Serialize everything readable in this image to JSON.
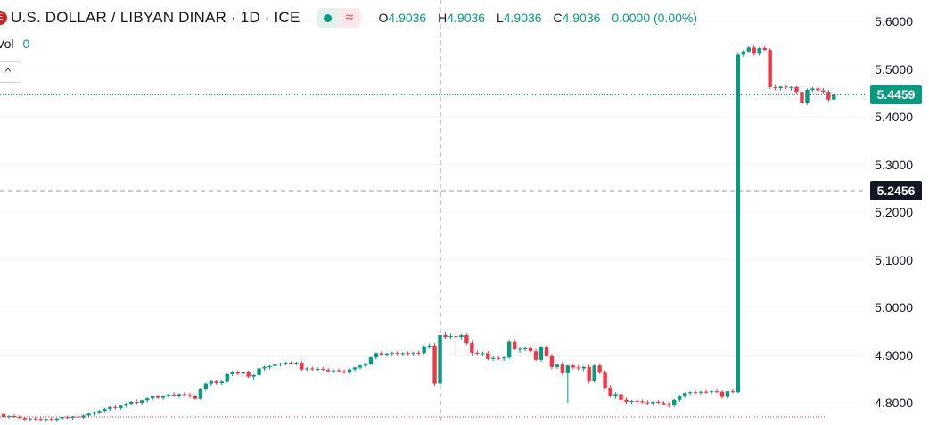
{
  "header": {
    "logo_text": "E",
    "title": "U.S. DOLLAR / LIBYAN DINAR · 1D · ICE",
    "wave_glyph": "≈",
    "ohlc": [
      {
        "k": "O",
        "v": "4.9036"
      },
      {
        "k": "H",
        "v": "4.9036"
      },
      {
        "k": "L",
        "v": "4.9036"
      },
      {
        "k": "C",
        "v": "4.9036"
      },
      {
        "k": "",
        "v": "0.0000 (0.00%)"
      }
    ],
    "vol_label": "Vol",
    "vol_value": "0",
    "collapse_glyph": "^"
  },
  "axis": {
    "tick_labels": [
      "5.6000",
      "5.5000",
      "5.4000",
      "5.3000",
      "5.2000",
      "5.1000",
      "5.0000",
      "4.9000",
      "4.8000"
    ],
    "last_price_label": "5.4459",
    "crosshair_label": "5.2456"
  },
  "colors": {
    "up": "#089981",
    "down": "#f23645",
    "crosshair_tag": "#131722",
    "grid": "#f0f3fa"
  },
  "chart_data": {
    "type": "candlestick",
    "title": "U.S. DOLLAR / LIBYAN DINAR · 1D · ICE",
    "ylim": [
      4.78,
      5.62
    ],
    "y_ticks": [
      5.6,
      5.5,
      5.4,
      5.3,
      5.2,
      5.1,
      5.0,
      4.9,
      4.8
    ],
    "last_price": 5.4459,
    "crosshair_price": 5.2456,
    "last_ohlc": {
      "open": 4.9036,
      "high": 4.9036,
      "low": 4.9036,
      "close": 4.9036,
      "change": 0.0,
      "change_pct": 0.0
    },
    "volume": 0,
    "candles": [
      [
        4.776,
        4.779,
        4.77,
        4.77
      ],
      [
        4.77,
        4.774,
        4.766,
        4.772
      ],
      [
        4.772,
        4.776,
        4.768,
        4.77
      ],
      [
        4.77,
        4.773,
        4.766,
        4.768
      ],
      [
        4.768,
        4.77,
        4.762,
        4.765
      ],
      [
        4.765,
        4.768,
        4.76,
        4.767
      ],
      [
        4.767,
        4.77,
        4.763,
        4.766
      ],
      [
        4.766,
        4.77,
        4.762,
        4.764
      ],
      [
        4.764,
        4.767,
        4.76,
        4.766
      ],
      [
        4.766,
        4.769,
        4.763,
        4.764
      ],
      [
        4.764,
        4.768,
        4.76,
        4.767
      ],
      [
        4.767,
        4.772,
        4.764,
        4.77
      ],
      [
        4.77,
        4.773,
        4.766,
        4.768
      ],
      [
        4.768,
        4.772,
        4.764,
        4.771
      ],
      [
        4.771,
        4.774,
        4.767,
        4.769
      ],
      [
        4.769,
        4.775,
        4.766,
        4.773
      ],
      [
        4.773,
        4.779,
        4.77,
        4.777
      ],
      [
        4.777,
        4.782,
        4.773,
        4.78
      ],
      [
        4.78,
        4.785,
        4.776,
        4.783
      ],
      [
        4.783,
        4.789,
        4.78,
        4.787
      ],
      [
        4.787,
        4.793,
        4.783,
        4.791
      ],
      [
        4.791,
        4.795,
        4.786,
        4.789
      ],
      [
        4.789,
        4.796,
        4.785,
        4.794
      ],
      [
        4.794,
        4.8,
        4.79,
        4.798
      ],
      [
        4.798,
        4.804,
        4.794,
        4.802
      ],
      [
        4.802,
        4.807,
        4.797,
        4.8
      ],
      [
        4.8,
        4.806,
        4.796,
        4.805
      ],
      [
        4.805,
        4.811,
        4.801,
        4.809
      ],
      [
        4.809,
        4.815,
        4.805,
        4.813
      ],
      [
        4.813,
        4.817,
        4.808,
        4.81
      ],
      [
        4.81,
        4.816,
        4.806,
        4.814
      ],
      [
        4.814,
        4.819,
        4.81,
        4.817
      ],
      [
        4.817,
        4.822,
        4.812,
        4.815
      ],
      [
        4.815,
        4.82,
        4.81,
        4.818
      ],
      [
        4.818,
        4.823,
        4.813,
        4.816
      ],
      [
        4.816,
        4.821,
        4.81,
        4.813
      ],
      [
        4.813,
        4.817,
        4.806,
        4.808
      ],
      [
        4.808,
        4.83,
        4.805,
        4.828
      ],
      [
        4.828,
        4.842,
        4.825,
        4.84
      ],
      [
        4.84,
        4.848,
        4.835,
        4.845
      ],
      [
        4.845,
        4.849,
        4.838,
        4.841
      ],
      [
        4.841,
        4.847,
        4.837,
        4.844
      ],
      [
        4.844,
        4.862,
        4.842,
        4.86
      ],
      [
        4.86,
        4.867,
        4.856,
        4.864
      ],
      [
        4.864,
        4.868,
        4.858,
        4.861
      ],
      [
        4.861,
        4.866,
        4.857,
        4.864
      ],
      [
        4.864,
        4.868,
        4.852,
        4.855
      ],
      [
        4.855,
        4.86,
        4.848,
        4.858
      ],
      [
        4.858,
        4.874,
        4.855,
        4.872
      ],
      [
        4.872,
        4.878,
        4.867,
        4.875
      ],
      [
        4.875,
        4.879,
        4.87,
        4.877
      ],
      [
        4.877,
        4.882,
        4.873,
        4.88
      ],
      [
        4.88,
        4.884,
        4.876,
        4.882
      ],
      [
        4.882,
        4.886,
        4.878,
        4.884
      ],
      [
        4.884,
        4.887,
        4.88,
        4.882
      ],
      [
        4.882,
        4.886,
        4.878,
        4.884
      ],
      [
        4.884,
        4.887,
        4.867,
        4.87
      ],
      [
        4.87,
        4.875,
        4.866,
        4.872
      ],
      [
        4.872,
        4.876,
        4.867,
        4.87
      ],
      [
        4.87,
        4.874,
        4.866,
        4.871
      ],
      [
        4.871,
        4.875,
        4.867,
        4.869
      ],
      [
        4.869,
        4.873,
        4.864,
        4.866
      ],
      [
        4.866,
        4.87,
        4.862,
        4.868
      ],
      [
        4.868,
        4.872,
        4.864,
        4.866
      ],
      [
        4.866,
        4.87,
        4.861,
        4.863
      ],
      [
        4.863,
        4.872,
        4.86,
        4.87
      ],
      [
        4.87,
        4.876,
        4.866,
        4.874
      ],
      [
        4.874,
        4.88,
        4.87,
        4.878
      ],
      [
        4.878,
        4.884,
        4.874,
        4.882
      ],
      [
        4.882,
        4.897,
        4.879,
        4.895
      ],
      [
        4.895,
        4.906,
        4.891,
        4.904
      ],
      [
        4.904,
        4.908,
        4.898,
        4.901
      ],
      [
        4.901,
        4.905,
        4.896,
        4.903
      ],
      [
        4.903,
        4.907,
        4.898,
        4.905
      ],
      [
        4.905,
        4.908,
        4.9,
        4.903
      ],
      [
        4.903,
        4.906,
        4.899,
        4.904
      ],
      [
        4.904,
        4.908,
        4.9,
        4.903
      ],
      [
        4.903,
        4.907,
        4.899,
        4.905
      ],
      [
        4.905,
        4.909,
        4.9,
        4.904
      ],
      [
        4.904,
        4.92,
        4.902,
        4.918
      ],
      [
        4.918,
        4.924,
        4.913,
        4.92
      ],
      [
        4.92,
        4.925,
        4.835,
        4.84
      ],
      [
        4.84,
        4.945,
        4.835,
        4.942
      ],
      [
        4.942,
        4.948,
        4.935,
        4.938
      ],
      [
        4.938,
        4.945,
        4.933,
        4.94
      ],
      [
        4.94,
        4.944,
        4.9,
        4.938
      ],
      [
        4.938,
        4.944,
        4.932,
        4.942
      ],
      [
        4.942,
        4.946,
        4.922,
        4.925
      ],
      [
        4.925,
        4.93,
        4.9,
        4.905
      ],
      [
        4.905,
        4.91,
        4.9,
        4.903
      ],
      [
        4.903,
        4.907,
        4.898,
        4.904
      ],
      [
        4.904,
        4.908,
        4.89,
        4.892
      ],
      [
        4.892,
        4.897,
        4.888,
        4.894
      ],
      [
        4.894,
        4.898,
        4.89,
        4.893
      ],
      [
        4.893,
        4.897,
        4.888,
        4.895
      ],
      [
        4.895,
        4.931,
        4.892,
        4.928
      ],
      [
        4.928,
        4.933,
        4.91,
        4.912
      ],
      [
        4.912,
        4.917,
        4.905,
        4.913
      ],
      [
        4.913,
        4.918,
        4.908,
        4.914
      ],
      [
        4.914,
        4.919,
        4.905,
        4.908
      ],
      [
        4.908,
        4.913,
        4.888,
        4.89
      ],
      [
        4.89,
        4.92,
        4.886,
        4.917
      ],
      [
        4.917,
        4.921,
        4.895,
        4.898
      ],
      [
        4.898,
        4.903,
        4.87,
        4.875
      ],
      [
        4.875,
        4.882,
        4.871,
        4.88
      ],
      [
        4.88,
        4.885,
        4.858,
        4.862
      ],
      [
        4.862,
        4.88,
        4.8,
        4.878
      ],
      [
        4.878,
        4.883,
        4.87,
        4.874
      ],
      [
        4.874,
        4.879,
        4.868,
        4.872
      ],
      [
        4.872,
        4.877,
        4.866,
        4.875
      ],
      [
        4.875,
        4.88,
        4.84,
        4.845
      ],
      [
        4.845,
        4.881,
        4.842,
        4.878
      ],
      [
        4.878,
        4.883,
        4.86,
        4.863
      ],
      [
        4.863,
        4.868,
        4.828,
        4.832
      ],
      [
        4.832,
        4.837,
        4.81,
        4.815
      ],
      [
        4.815,
        4.822,
        4.808,
        4.818
      ],
      [
        4.818,
        4.822,
        4.802,
        4.806
      ],
      [
        4.806,
        4.81,
        4.798,
        4.802
      ],
      [
        4.802,
        4.806,
        4.798,
        4.804
      ],
      [
        4.804,
        4.808,
        4.799,
        4.803
      ],
      [
        4.803,
        4.807,
        4.799,
        4.801
      ],
      [
        4.801,
        4.805,
        4.796,
        4.799
      ],
      [
        4.799,
        4.803,
        4.795,
        4.802
      ],
      [
        4.802,
        4.806,
        4.798,
        4.8
      ],
      [
        4.8,
        4.804,
        4.795,
        4.797
      ],
      [
        4.797,
        4.801,
        4.79,
        4.794
      ],
      [
        4.794,
        4.808,
        4.791,
        4.806
      ],
      [
        4.806,
        4.816,
        4.802,
        4.814
      ],
      [
        4.814,
        4.822,
        4.81,
        4.82
      ],
      [
        4.82,
        4.824,
        4.816,
        4.822
      ],
      [
        4.822,
        4.826,
        4.818,
        4.821
      ],
      [
        4.821,
        4.825,
        4.817,
        4.823
      ],
      [
        4.823,
        4.827,
        4.819,
        4.822
      ],
      [
        4.822,
        4.826,
        4.818,
        4.824
      ],
      [
        4.824,
        4.828,
        4.82,
        4.823
      ],
      [
        4.823,
        4.826,
        4.808,
        4.812
      ],
      [
        4.812,
        4.818,
        4.808,
        4.824
      ],
      [
        4.824,
        4.828,
        4.82,
        4.822
      ],
      [
        4.822,
        5.535,
        4.82,
        5.53
      ],
      [
        5.53,
        5.54,
        5.525,
        5.537
      ],
      [
        5.537,
        5.548,
        5.533,
        5.545
      ],
      [
        5.545,
        5.55,
        5.528,
        5.532
      ],
      [
        5.532,
        5.546,
        5.528,
        5.544
      ],
      [
        5.544,
        5.548,
        5.538,
        5.54
      ],
      [
        5.54,
        5.544,
        5.458,
        5.462
      ],
      [
        5.462,
        5.468,
        5.455,
        5.46
      ],
      [
        5.46,
        5.466,
        5.455,
        5.463
      ],
      [
        5.463,
        5.467,
        5.458,
        5.461
      ],
      [
        5.461,
        5.465,
        5.455,
        5.462
      ],
      [
        5.462,
        5.466,
        5.448,
        5.452
      ],
      [
        5.452,
        5.456,
        5.425,
        5.428
      ],
      [
        5.428,
        5.459,
        5.425,
        5.456
      ],
      [
        5.456,
        5.462,
        5.452,
        5.459
      ],
      [
        5.459,
        5.463,
        5.45,
        5.455
      ],
      [
        5.455,
        5.46,
        5.448,
        5.452
      ],
      [
        5.452,
        5.456,
        5.432,
        5.436
      ],
      [
        5.436,
        5.45,
        5.432,
        5.446
      ]
    ]
  }
}
